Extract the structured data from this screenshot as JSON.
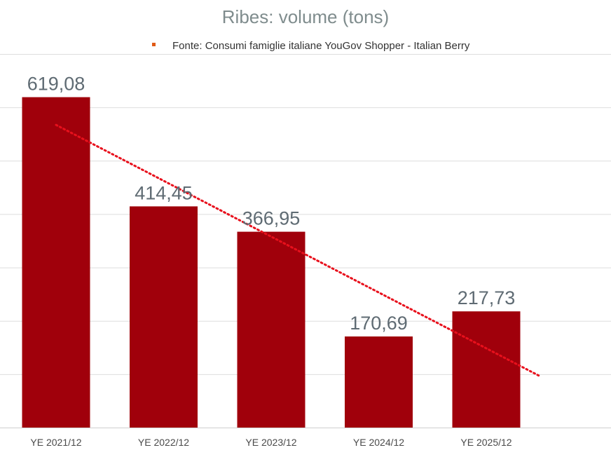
{
  "chart_data": {
    "type": "bar",
    "title": "Ribes: volume (tons)",
    "categories": [
      "YE 2021/12",
      "YE 2022/12",
      "YE 2023/12",
      "YE 2024/12",
      "YE 2025/12"
    ],
    "series": [
      {
        "values": [
          619.08,
          414.45,
          366.95,
          170.69,
          217.73
        ],
        "value_labels": [
          "619,08",
          "414,45",
          "366,95",
          "170,69",
          "217,73"
        ]
      }
    ],
    "legend": {
      "text": "Fonte: Consumi famiglie italiane YouGov Shopper - Italian Berry",
      "position": "top"
    },
    "trendline": {
      "type": "linear",
      "style": "dotted"
    },
    "ylim": [
      0,
      700
    ],
    "gridlines": true,
    "colors": {
      "bar": "#a0000b",
      "trendline": "#e8101c",
      "legend_marker": "#e05a16"
    }
  }
}
